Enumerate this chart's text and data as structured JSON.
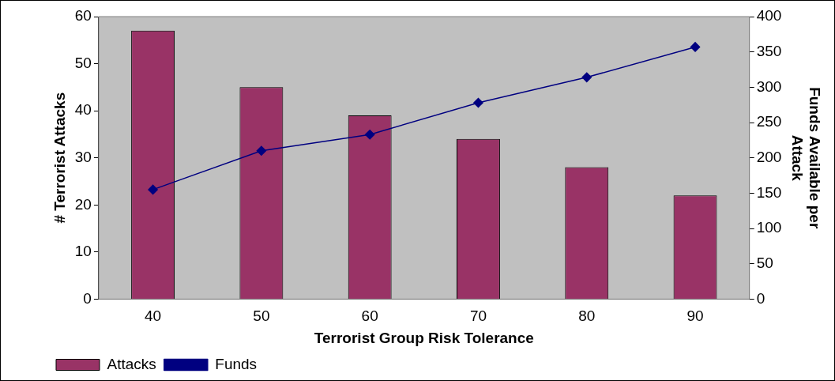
{
  "chart_data": {
    "type": "bar",
    "xlabel": "Terrorist Group Risk Tolerance",
    "ylabel": "# Terrorist Attacks",
    "y2label": "Funds Available per Attack",
    "categories": [
      "40",
      "50",
      "60",
      "70",
      "80",
      "90"
    ],
    "series": [
      {
        "name": "Attacks",
        "color": "#993366",
        "values": [
          57,
          45,
          39,
          34,
          28,
          22
        ]
      },
      {
        "name": "Funds",
        "type": "line",
        "axis": "y2",
        "color": "#000080",
        "values": [
          155,
          210,
          233,
          278,
          314,
          357
        ]
      }
    ],
    "ylim": [
      0,
      60
    ],
    "yticks": [
      0,
      10,
      20,
      30,
      40,
      50,
      60
    ],
    "y2lim": [
      0,
      400
    ],
    "y2ticks": [
      0,
      50,
      100,
      150,
      200,
      250,
      300,
      350,
      400
    ],
    "grid": false,
    "legend": "bottom left",
    "marker": "diamond",
    "line_style": "solid"
  }
}
